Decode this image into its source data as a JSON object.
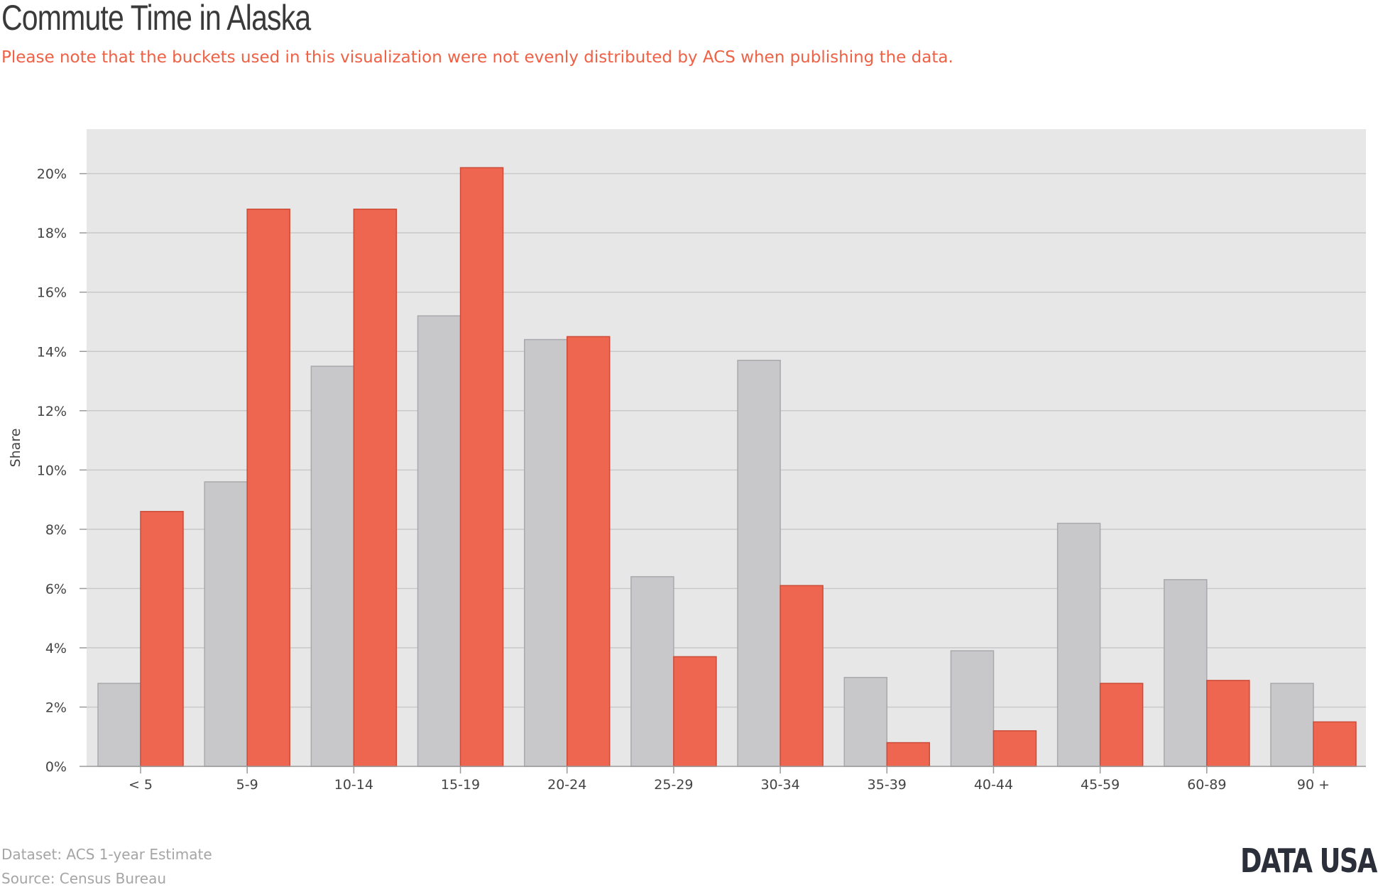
{
  "title": "Commute Time in Alaska",
  "subtitle": "Please note that the buckets used in this visualization were not evenly distributed by ACS when publishing the data.",
  "footer": {
    "dataset": "Dataset: ACS 1-year Estimate",
    "source": "Source: Census Bureau"
  },
  "logo": "DATA USA",
  "colors": {
    "background_panel": "#e7e7e7",
    "gridline": "#c9c9c9",
    "series_gray": "#c8c8cb",
    "series_red": "#ef6650",
    "subtitle": "#ef6145"
  },
  "chart_data": {
    "type": "bar",
    "title": "Commute Time in Alaska",
    "xlabel": "",
    "ylabel": "Share",
    "ylim": [
      0,
      21.5
    ],
    "yticks": [
      0,
      2,
      4,
      6,
      8,
      10,
      12,
      14,
      16,
      18,
      20
    ],
    "ytick_suffix": "%",
    "grid": true,
    "legend": "none",
    "categories": [
      "< 5",
      "5-9",
      "10-14",
      "15-19",
      "20-24",
      "25-29",
      "30-34",
      "35-39",
      "40-44",
      "45-59",
      "60-89",
      "90 +"
    ],
    "series": [
      {
        "color": "#c8c8cb",
        "values": [
          2.8,
          9.6,
          13.5,
          15.2,
          14.4,
          6.4,
          13.7,
          3.0,
          3.9,
          8.2,
          6.3,
          2.8
        ]
      },
      {
        "color": "#ef6650",
        "values": [
          8.6,
          18.8,
          18.8,
          20.2,
          14.5,
          3.7,
          6.1,
          0.8,
          1.2,
          2.8,
          2.9,
          1.5
        ]
      }
    ]
  }
}
